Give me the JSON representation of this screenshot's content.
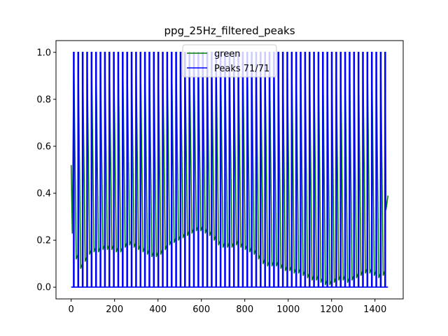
{
  "chart_data": {
    "type": "line",
    "title": "ppg_25Hz_filtered_peaks",
    "xlabel": "",
    "ylabel": "",
    "xlim": [
      -70,
      1530
    ],
    "ylim": [
      -0.05,
      1.05
    ],
    "xticks": [
      0,
      200,
      400,
      600,
      800,
      1000,
      1200,
      1400
    ],
    "yticks": [
      0.0,
      0.2,
      0.4,
      0.6,
      0.8,
      1.0
    ],
    "xtick_labels": [
      "0",
      "200",
      "400",
      "600",
      "800",
      "1000",
      "1200",
      "1400"
    ],
    "ytick_labels": [
      "0.0",
      "0.2",
      "0.4",
      "0.6",
      "0.8",
      "1.0"
    ],
    "grid": false,
    "legend_position": "top-center",
    "series": [
      {
        "name": "green",
        "color": "#008000",
        "x_range": [
          0,
          1460
        ],
        "start_value": 0.52,
        "end_value": 0.39,
        "num_beats": 71,
        "beat_period": 20.5,
        "trough_values": [
          0.23,
          0.12,
          0.08,
          0.11,
          0.14,
          0.15,
          0.15,
          0.16,
          0.16,
          0.16,
          0.15,
          0.15,
          0.17,
          0.18,
          0.17,
          0.16,
          0.15,
          0.14,
          0.13,
          0.13,
          0.14,
          0.16,
          0.18,
          0.19,
          0.2,
          0.21,
          0.22,
          0.23,
          0.24,
          0.24,
          0.23,
          0.22,
          0.2,
          0.18,
          0.17,
          0.17,
          0.17,
          0.18,
          0.17,
          0.16,
          0.15,
          0.14,
          0.12,
          0.1,
          0.09,
          0.09,
          0.09,
          0.08,
          0.07,
          0.07,
          0.06,
          0.06,
          0.05,
          0.04,
          0.03,
          0.03,
          0.02,
          0.01,
          0.01,
          0.02,
          0.03,
          0.03,
          0.02,
          0.03,
          0.04,
          0.05,
          0.06,
          0.06,
          0.05,
          0.04,
          0.05
        ]
      },
      {
        "name": "Peaks 71/71",
        "color": "#0000ff",
        "x_range": [
          0,
          1460
        ],
        "baseline": 0.0,
        "peak_value": 1.0,
        "num_peaks": 71
      }
    ]
  }
}
